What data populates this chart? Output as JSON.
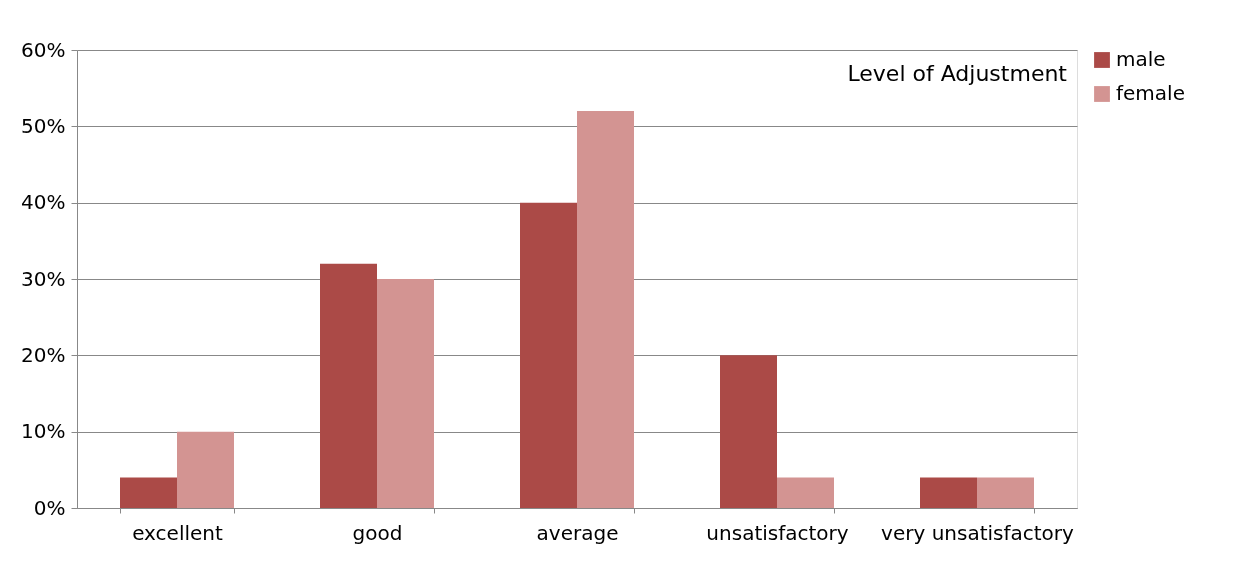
{
  "chart_data": {
    "type": "bar",
    "title": "Level of Adjustment",
    "categories": [
      "excellent",
      "good",
      "average",
      "unsatisfactory",
      "very unsatisfactory"
    ],
    "series": [
      {
        "name": "male",
        "color": "#ab4a47",
        "values": [
          4,
          32,
          40,
          20,
          4
        ]
      },
      {
        "name": "female",
        "color": "#d39492",
        "values": [
          10,
          30,
          52,
          4,
          4
        ]
      }
    ],
    "ylim": [
      0,
      60
    ],
    "yticks": [
      {
        "value": 0,
        "label": "0%"
      },
      {
        "value": 10,
        "label": "10%"
      },
      {
        "value": 20,
        "label": "20%"
      },
      {
        "value": 30,
        "label": "30%"
      },
      {
        "value": 40,
        "label": "40%"
      },
      {
        "value": 50,
        "label": "50%"
      },
      {
        "value": 60,
        "label": "60%"
      }
    ],
    "grid": "y",
    "legend": "right"
  }
}
